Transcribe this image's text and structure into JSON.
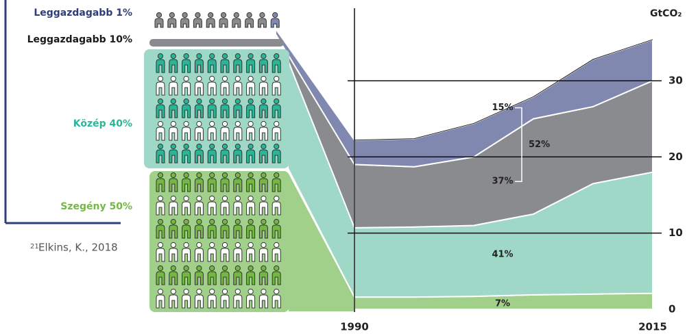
{
  "chart_data": {
    "type": "stacked_area",
    "y_label": "GtCO₂",
    "x": [
      1990,
      1995,
      2000,
      2005,
      2010,
      2015
    ],
    "xlim": [
      1990,
      2015
    ],
    "xticks": [
      1990,
      2015
    ],
    "ylim": [
      0,
      37
    ],
    "yticks": [
      0,
      10,
      20,
      30
    ],
    "grid": true,
    "series": [
      {
        "name": "Szegény 50%",
        "color": "#a0d08a",
        "label_color": "#74b843",
        "share_label": "7%",
        "values": [
          1.6,
          1.6,
          1.7,
          1.9,
          2.0,
          2.1
        ]
      },
      {
        "name": "Közép 40%",
        "color": "#9fd8c6",
        "label_color": "#2ab597",
        "share_label": "41%",
        "values": [
          9.1,
          9.2,
          9.3,
          10.6,
          14.5,
          15.9
        ]
      },
      {
        "name": "Leggazdagabb  10%",
        "color": "#8a8b8e",
        "label_color": "#1a1a1a",
        "share_label": "37%",
        "values": [
          8.3,
          7.9,
          9.0,
          12.5,
          10.1,
          12.0
        ]
      },
      {
        "name": "Leggazdagabb 1%",
        "color": "#8088b0",
        "label_color": "#2d3e78",
        "share_label": "15%",
        "values": [
          3.2,
          3.7,
          4.4,
          2.9,
          6.2,
          5.4
        ]
      }
    ],
    "bracket_label": "52%"
  },
  "footnote": {
    "number": "21",
    "text": "Elkins, K., 2018"
  }
}
